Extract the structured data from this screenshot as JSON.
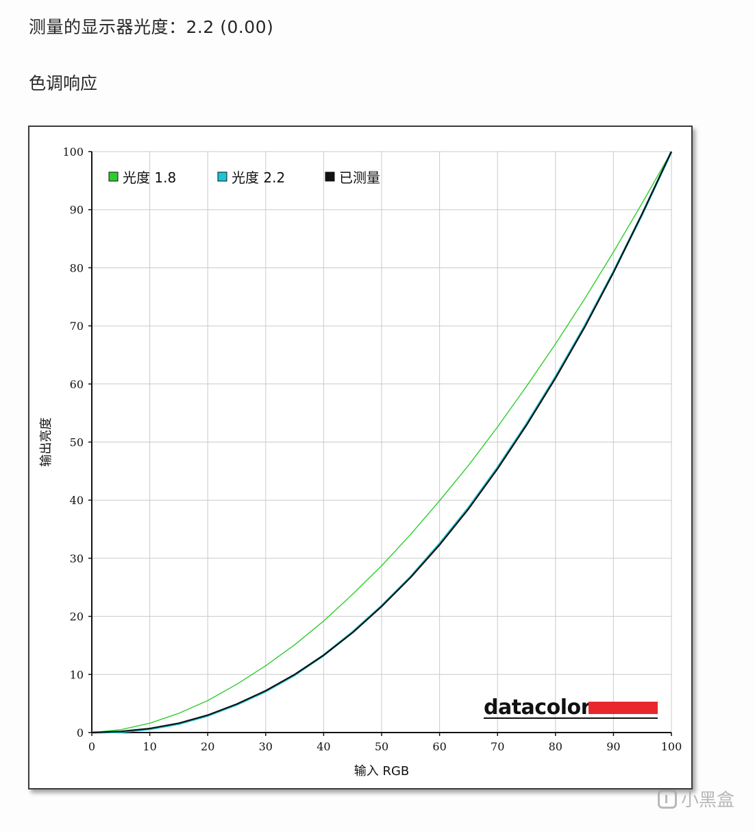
{
  "header": {
    "measured_gamma": "测量的显示器光度：2.2 (0.00)",
    "section_title": "色调响应"
  },
  "chart_data": {
    "type": "line",
    "xlabel": "输入 RGB",
    "ylabel": "输出亮度",
    "xlim": [
      0,
      100
    ],
    "ylim": [
      0,
      100
    ],
    "x_ticks": [
      "0",
      "10",
      "20",
      "30",
      "40",
      "50",
      "60",
      "70",
      "80",
      "90",
      "100"
    ],
    "y_ticks": [
      "0",
      "10",
      "20",
      "30",
      "40",
      "50",
      "60",
      "70",
      "80",
      "90",
      "100"
    ],
    "grid": true,
    "legend_position": "top-left",
    "x": [
      0,
      5,
      10,
      15,
      20,
      25,
      30,
      35,
      40,
      45,
      50,
      55,
      60,
      65,
      70,
      75,
      80,
      85,
      90,
      95,
      100
    ],
    "series": [
      {
        "name": "光度 1.8",
        "color": "#2ecc2e",
        "values": [
          0,
          0.5,
          1.6,
          3.3,
          5.5,
          8.3,
          11.5,
          15.1,
          19.2,
          23.8,
          28.7,
          34.1,
          39.9,
          46.0,
          52.6,
          59.6,
          66.9,
          74.6,
          82.7,
          91.2,
          100
        ]
      },
      {
        "name": "光度 2.2",
        "color": "#1ac6d6",
        "values": [
          0,
          0.1,
          0.6,
          1.5,
          2.9,
          4.8,
          7.1,
          9.9,
          13.3,
          17.3,
          21.8,
          26.8,
          32.5,
          38.7,
          45.6,
          53.1,
          61.2,
          69.9,
          79.3,
          89.3,
          100
        ]
      },
      {
        "name": "已测量",
        "color": "#111111",
        "values": [
          0,
          0.2,
          0.7,
          1.6,
          3.0,
          4.9,
          7.2,
          10.0,
          13.3,
          17.2,
          21.7,
          26.7,
          32.3,
          38.5,
          45.4,
          52.9,
          61.0,
          69.7,
          79.2,
          89.4,
          100
        ]
      }
    ]
  },
  "brand": {
    "name": "datacolor",
    "accent_color": "#e8262c"
  },
  "watermark": {
    "text": "小黑盒",
    "icon": "heybox-logo-icon"
  }
}
